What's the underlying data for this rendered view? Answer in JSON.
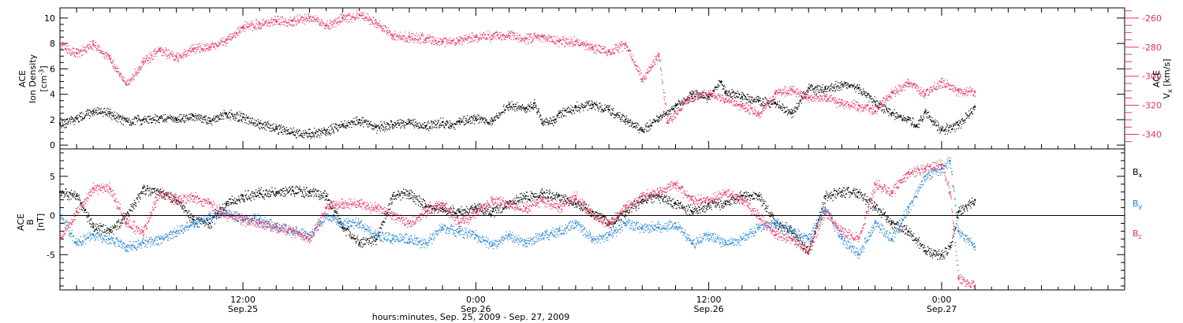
{
  "chart_data": [
    {
      "type": "scatter",
      "panel": "top",
      "ylabel_left": [
        "ACE",
        "Ion Density",
        "[cm^-3]"
      ],
      "ylabel_right": [
        "ACE",
        "Vx",
        "[km/s]"
      ],
      "ylim_left": [
        -0.3,
        10.8
      ],
      "yticks_left": [
        0,
        2,
        4,
        6,
        8,
        10
      ],
      "ylim_right": [
        -350,
        -253
      ],
      "yticks_right": [
        -260,
        -280,
        -300,
        -320,
        -340
      ],
      "series": [
        {
          "name": "",
          "axis": "left",
          "color": "#000000",
          "x": [
            0,
            2,
            4,
            6,
            8,
            10,
            12,
            14,
            16,
            18,
            20,
            22,
            24,
            26,
            28,
            30,
            32,
            34,
            36,
            38,
            40,
            42,
            44,
            46,
            47,
            48,
            50,
            52,
            54,
            56,
            57,
            58,
            59.5,
            60,
            62,
            64,
            66,
            68,
            70,
            72,
            74,
            76,
            78,
            79.5,
            80,
            82,
            84,
            86,
            88,
            90,
            92,
            94,
            96,
            98,
            100,
            102,
            103,
            104,
            106,
            108,
            110
          ],
          "y": [
            1.7,
            2.1,
            2.7,
            2.5,
            1.9,
            2.0,
            2.2,
            2.0,
            2.3,
            1.9,
            2.5,
            2.2,
            1.7,
            1.3,
            1.0,
            0.9,
            1.1,
            1.6,
            2.0,
            1.4,
            1.6,
            1.8,
            1.5,
            1.8,
            1.5,
            1.9,
            2.1,
            1.9,
            3.2,
            2.9,
            3.3,
            1.7,
            2.0,
            2.5,
            3.0,
            3.2,
            2.8,
            2.0,
            1.2,
            2.2,
            3.1,
            4.0,
            3.8,
            5.0,
            4.2,
            3.8,
            3.5,
            3.3,
            2.5,
            4.5,
            4.4,
            4.8,
            4.5,
            3.4,
            2.5,
            2.0,
            1.5,
            2.6,
            1.2,
            1.6,
            3.0
          ]
        },
        {
          "name": "",
          "axis": "right",
          "color": "#e8315d",
          "x": [
            0,
            2,
            4,
            6,
            8,
            10,
            12,
            14,
            16,
            18,
            20,
            22,
            24,
            26,
            28,
            30,
            32,
            34,
            36,
            38,
            40,
            42,
            44,
            46,
            48,
            50,
            52,
            54,
            56,
            58,
            60,
            62,
            64,
            66,
            68,
            70,
            72,
            73,
            75,
            76,
            78,
            80,
            82,
            84,
            86,
            88,
            90,
            92,
            94,
            96,
            98,
            100,
            102,
            104,
            106,
            108,
            110
          ],
          "y": [
            -278,
            -284,
            -278,
            -288,
            -306,
            -290,
            -282,
            -287,
            -281,
            -280,
            -275,
            -266,
            -264,
            -262,
            -262,
            -260,
            -265,
            -260,
            -258,
            -263,
            -272,
            -273,
            -274,
            -276,
            -275,
            -273,
            -272,
            -272,
            -274,
            -273,
            -276,
            -276,
            -280,
            -283,
            -278,
            -302,
            -285,
            -332,
            -318,
            -314,
            -312,
            -316,
            -320,
            -326,
            -312,
            -309,
            -315,
            -314,
            -319,
            -320,
            -324,
            -311,
            -305,
            -312,
            -304,
            -310,
            -311
          ]
        }
      ]
    },
    {
      "type": "scatter",
      "panel": "bottom",
      "ylabel": [
        "ACE",
        "B",
        "[nT]"
      ],
      "ylim": [
        -9.5,
        8.5
      ],
      "yticks": [
        5,
        0,
        -5
      ],
      "zero_line": true,
      "series": [
        {
          "name": "Bx",
          "color": "#000000",
          "x": [
            0,
            2,
            4,
            6,
            8,
            10,
            12,
            14,
            16,
            18,
            20,
            22,
            24,
            26,
            28,
            30,
            32,
            34,
            36,
            38,
            40,
            42,
            44,
            46,
            48,
            50,
            52,
            54,
            56,
            58,
            60,
            62,
            64,
            66,
            68,
            70,
            72,
            74,
            76,
            78,
            80,
            82,
            84,
            86,
            88,
            90,
            92,
            94,
            96,
            98,
            100,
            102,
            104,
            106,
            107,
            108,
            110
          ],
          "y": [
            3,
            2.5,
            -1.5,
            -2,
            0,
            3.5,
            3,
            2,
            -0.5,
            -1,
            1.5,
            2.5,
            2.8,
            3,
            3.2,
            3,
            2.5,
            -1.5,
            -3.5,
            -3,
            2.5,
            2.8,
            1.2,
            0.8,
            0.5,
            1,
            0.5,
            1.5,
            2.5,
            2.8,
            2.5,
            1.5,
            0.5,
            -1,
            0.5,
            2,
            2.5,
            1.5,
            0.5,
            1.5,
            1.5,
            2.5,
            2.5,
            -1,
            -2,
            -4.5,
            2.5,
            3,
            3,
            1,
            -1,
            -2,
            -4.5,
            -5,
            -4,
            0.5,
            2
          ]
        },
        {
          "name": "By",
          "color": "#1f83d6",
          "x": [
            0,
            2,
            4,
            6,
            8,
            10,
            12,
            14,
            16,
            18,
            20,
            22,
            24,
            26,
            28,
            30,
            32,
            34,
            36,
            38,
            40,
            42,
            44,
            46,
            48,
            50,
            52,
            54,
            56,
            58,
            60,
            62,
            64,
            66,
            68,
            70,
            72,
            74,
            76,
            78,
            80,
            82,
            84,
            86,
            88,
            90,
            92,
            94,
            96,
            98,
            100,
            102,
            104,
            106,
            107,
            108,
            110
          ],
          "y": [
            0,
            -3.5,
            -2.5,
            -3,
            -4,
            -3.5,
            -3,
            -2,
            -1,
            0,
            0.5,
            -0.5,
            -0.5,
            -1.5,
            -2,
            -2.5,
            0,
            -1,
            -1,
            -2.5,
            -3,
            -3,
            -3.5,
            -1.5,
            -2,
            -2.5,
            -3.8,
            -2.5,
            -3.5,
            -2.5,
            -2,
            -1,
            -3,
            -2.5,
            -1,
            -1.5,
            -1.5,
            -1,
            -3.5,
            -2.5,
            -3.5,
            -3,
            -1.5,
            -1,
            -2,
            -3,
            1,
            -3,
            -5,
            -1,
            -3,
            1,
            5,
            6,
            7,
            -2,
            -4
          ]
        },
        {
          "name": "Bz",
          "color": "#e8315d",
          "x": [
            0,
            2,
            4,
            6,
            8,
            10,
            12,
            14,
            16,
            18,
            20,
            22,
            24,
            26,
            28,
            30,
            32,
            34,
            36,
            38,
            40,
            42,
            44,
            46,
            48,
            50,
            52,
            54,
            56,
            58,
            60,
            62,
            64,
            66,
            68,
            70,
            72,
            74,
            76,
            78,
            80,
            82,
            84,
            86,
            88,
            90,
            92,
            94,
            96,
            98,
            100,
            102,
            104,
            106,
            107,
            108,
            110
          ],
          "y": [
            -3,
            0.5,
            3.5,
            3.5,
            -1,
            -2,
            3,
            2,
            2.5,
            1.5,
            0,
            -0.5,
            -1,
            -1.5,
            -2,
            -3,
            1,
            1.5,
            1.5,
            1,
            0,
            -1,
            0.5,
            1.5,
            -1,
            0.5,
            2,
            1.5,
            1,
            2,
            1,
            2.5,
            0,
            -1,
            1,
            2.5,
            3,
            4,
            2,
            2,
            3,
            2,
            0,
            -2.5,
            -3,
            -4.5,
            0.5,
            -2,
            -3,
            4,
            3,
            5.5,
            6,
            6.5,
            3,
            -8,
            -9
          ]
        }
      ]
    }
  ],
  "x_axis": {
    "range_hours": [
      0,
      128
    ],
    "ticks": [
      {
        "hour": 22,
        "time": "12:00",
        "date": "Sep.25"
      },
      {
        "hour": 50,
        "time": "0:00",
        "date": "Sep.26"
      },
      {
        "hour": 78,
        "time": "12:00",
        "date": "Sep.26"
      },
      {
        "hour": 106,
        "time": "0:00",
        "date": "Sep.27"
      }
    ],
    "xlabel": "hours:minutes, Sep. 25, 2009 - Sep. 27, 2009"
  },
  "legend": {
    "placement": "right",
    "entries": [
      {
        "label": "B",
        "sub": "x",
        "color": "#000000"
      },
      {
        "label": "B",
        "sub": "y",
        "color": "#1f83d6"
      },
      {
        "label": "B",
        "sub": "z",
        "color": "#e8315d"
      }
    ]
  },
  "text": {
    "top_ylabel_1": "ACE",
    "top_ylabel_2": "Ion Density",
    "top_ylabel_3": "[cm",
    "top_ylabel_3_sup": "-3",
    "top_ylabel_3_end": "]",
    "right_ylabel_1": "ACE",
    "right_ylabel_2": "V",
    "right_ylabel_2_sub": "x",
    "right_ylabel_3": "[km/s]",
    "bottom_ylabel_1": "ACE",
    "bottom_ylabel_2": "B",
    "bottom_ylabel_3": "[nT]"
  }
}
